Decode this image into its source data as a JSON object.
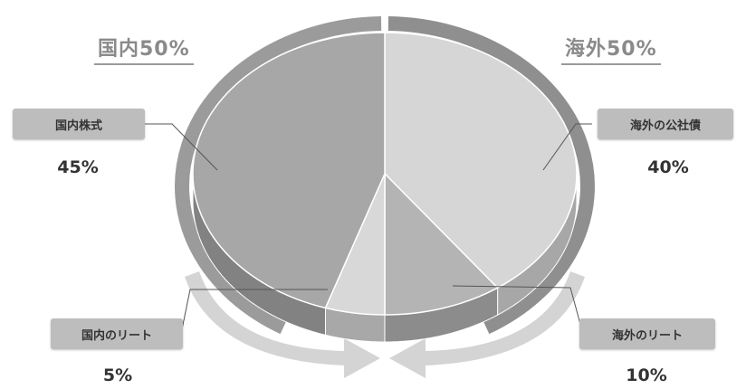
{
  "groups": {
    "domestic": {
      "label": "国内50%"
    },
    "overseas": {
      "label": "海外50%"
    }
  },
  "chart_data": {
    "type": "pie",
    "slices": [
      {
        "label": "国内株式",
        "value": 45,
        "value_label": "45%",
        "color": "#a7a7a7"
      },
      {
        "label": "国内のリート",
        "value": 5,
        "value_label": "5%",
        "color": "#d8d8d8"
      },
      {
        "label": "海外のリート",
        "value": 10,
        "value_label": "10%",
        "color": "#b4b4b4"
      },
      {
        "label": "海外の公社債",
        "value": 40,
        "value_label": "40%",
        "color": "#d6d6d6"
      }
    ],
    "colors": {
      "domestic_ring": "#9b9b9b",
      "overseas_ring": "#8f8f8f",
      "label_box": "#bdbdbd"
    }
  }
}
